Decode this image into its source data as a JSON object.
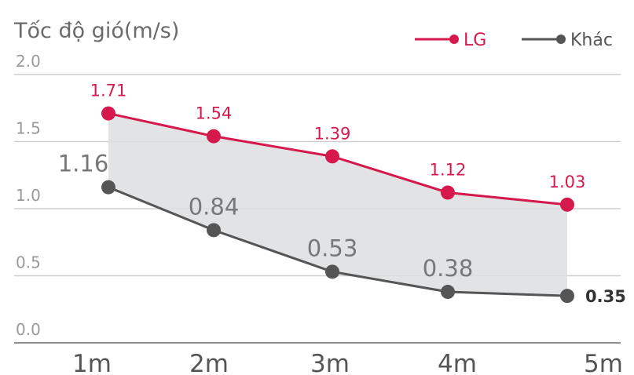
{
  "chart_data": {
    "type": "line",
    "title": "Tốc độ gió(m/s)",
    "categories": [
      "1m",
      "2m",
      "3m",
      "4m",
      "5m"
    ],
    "ylim": [
      0,
      2.0
    ],
    "yticks": [
      "0.0",
      "0.5",
      "1.0",
      "1.5",
      "2.0"
    ],
    "grid": true,
    "legend": "top-right",
    "series": [
      {
        "name": "LG",
        "color": "#d6194d",
        "values": [
          1.71,
          1.54,
          1.39,
          1.12,
          1.03
        ]
      },
      {
        "name": "Khác",
        "color": "#555555",
        "values": [
          1.16,
          0.84,
          0.53,
          0.38,
          0.35
        ]
      }
    ]
  }
}
